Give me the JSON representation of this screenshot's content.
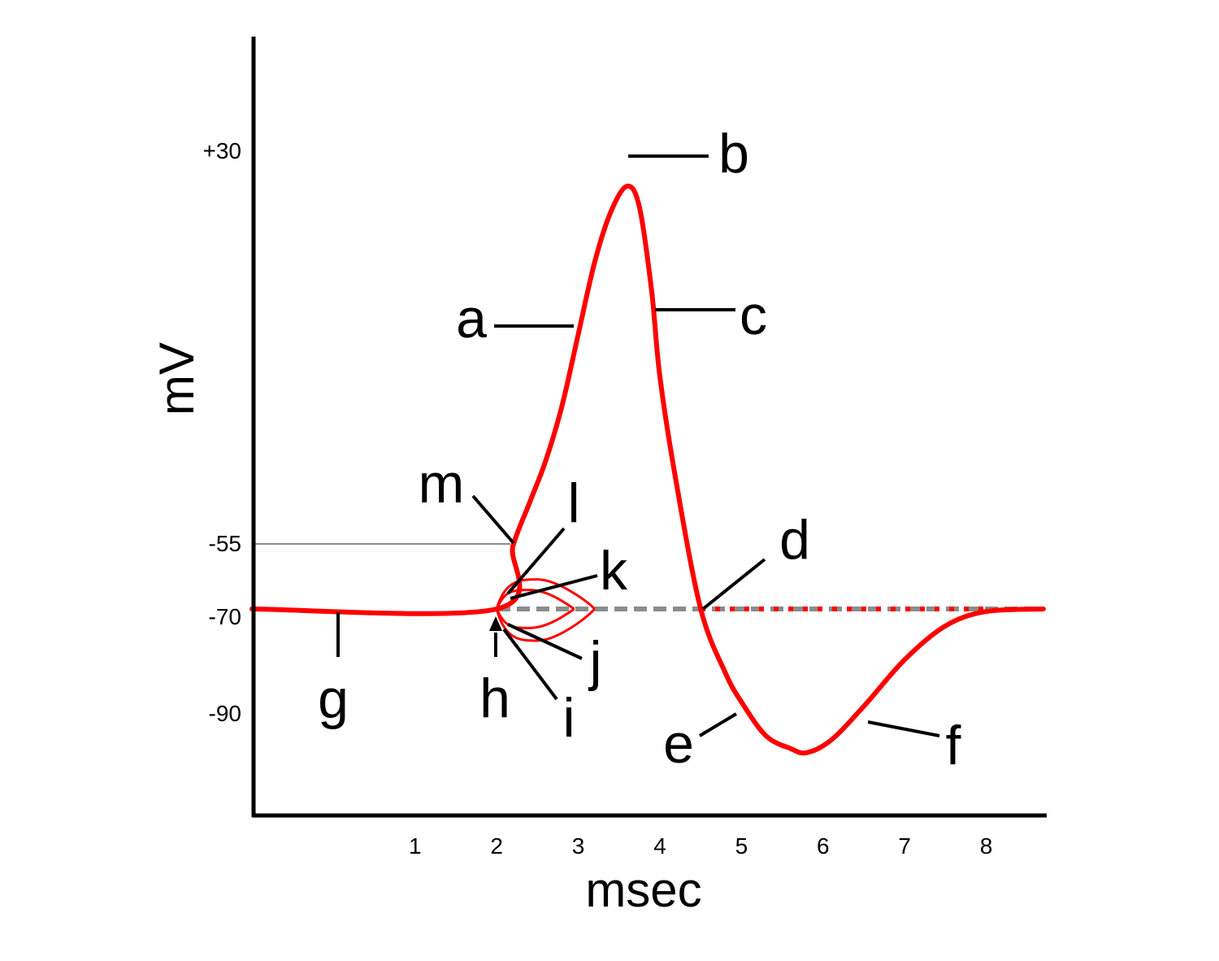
{
  "chart_data": {
    "type": "line",
    "title": "",
    "xlabel": "msec",
    "ylabel": "mV",
    "xlim": [
      -1.0,
      8.7
    ],
    "ylim": [
      -103,
      45
    ],
    "x_ticks": [
      1,
      2,
      3,
      4,
      5,
      6,
      7,
      8
    ],
    "y_ticks": [
      30,
      -55,
      -70,
      -90
    ],
    "y_tick_labels": [
      "+30",
      "-55",
      "-70",
      "-90"
    ],
    "grid": false,
    "legend": "none",
    "colors": {
      "trace": "#ff0000",
      "axis": "#000000",
      "baseline": "#8c8c8c"
    },
    "threshold": -55,
    "resting_potential": -70,
    "series": [
      {
        "values": [
          [
            -1.0,
            -70
          ],
          [
            2.0,
            -70
          ],
          [
            2.2,
            -55
          ],
          [
            2.4,
            -45
          ],
          [
            2.6,
            -35
          ],
          [
            2.8,
            -22
          ],
          [
            3.0,
            -5
          ],
          [
            3.2,
            12
          ],
          [
            3.4,
            24
          ],
          [
            3.6,
            30
          ],
          [
            3.75,
            25
          ],
          [
            3.9,
            5
          ],
          [
            4.0,
            -15
          ],
          [
            4.2,
            -40
          ],
          [
            4.5,
            -70
          ],
          [
            4.8,
            -85
          ],
          [
            5.0,
            -92
          ],
          [
            5.3,
            -100
          ],
          [
            5.6,
            -103
          ],
          [
            5.8,
            -104
          ],
          [
            6.1,
            -101
          ],
          [
            6.5,
            -93
          ],
          [
            7.0,
            -82
          ],
          [
            7.5,
            -74
          ],
          [
            8.0,
            -70.6
          ],
          [
            8.7,
            -70
          ]
        ]
      }
    ],
    "subthreshold_responses": [
      {
        "x": [
          2.0,
          2.5,
          3.2
        ],
        "y": [
          -70,
          -63,
          -70
        ]
      },
      {
        "x": [
          2.0,
          2.4,
          2.95
        ],
        "y": [
          -70,
          -65.5,
          -70
        ]
      },
      {
        "x": [
          2.0,
          2.5,
          3.2
        ],
        "y": [
          -70,
          -77.5,
          -70
        ]
      },
      {
        "x": [
          2.0,
          2.4,
          2.95
        ],
        "y": [
          -70,
          -74.5,
          -70
        ]
      }
    ],
    "annotations": [
      {
        "label": "a",
        "point": [
          2.95,
          -12
        ]
      },
      {
        "label": "b",
        "point": [
          3.6,
          30
        ]
      },
      {
        "label": "c",
        "point": [
          3.95,
          -14
        ]
      },
      {
        "label": "d",
        "point": [
          4.5,
          -70
        ]
      },
      {
        "label": "e",
        "point": [
          4.95,
          -90
        ]
      },
      {
        "label": "f",
        "point": [
          6.55,
          -92
        ]
      },
      {
        "label": "g",
        "point": [
          0.05,
          -70
        ]
      },
      {
        "label": "h",
        "point": [
          2.0,
          -71
        ]
      },
      {
        "label": "i",
        "point": [
          2.1,
          -73.5
        ]
      },
      {
        "label": "j",
        "point": [
          2.15,
          -72.5
        ]
      },
      {
        "label": "k",
        "point": [
          2.15,
          -68
        ]
      },
      {
        "label": "l",
        "point": [
          2.1,
          -67
        ]
      },
      {
        "label": "m",
        "point": [
          2.2,
          -55
        ]
      }
    ]
  }
}
